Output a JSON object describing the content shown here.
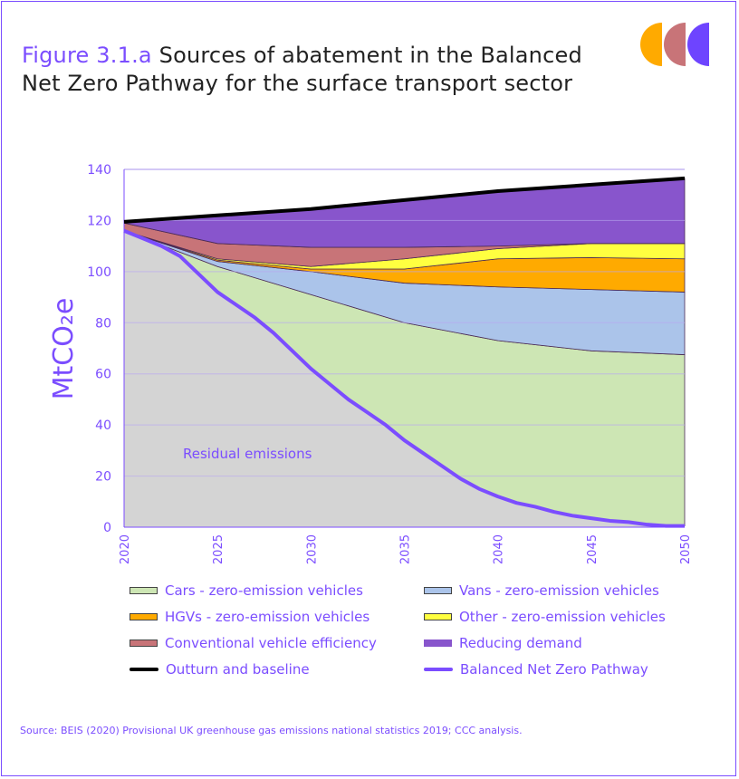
{
  "header": {
    "figure_label": "Figure 3.1.a",
    "title_line1": "Sources of abatement in the Balanced",
    "title_line2": "Net Zero Pathway for the surface transport sector"
  },
  "logo": {
    "colors": [
      "#ffaa00",
      "#c87478",
      "#6e44ff"
    ]
  },
  "source": "Source: BEIS (2020) Provisional UK greenhouse gas emissions national statistics 2019; CCC analysis.",
  "chart_data": {
    "type": "area",
    "title": "Sources of abatement in the Balanced Net Zero Pathway for the surface transport sector",
    "xlabel": "",
    "ylabel": "MtCO₂e",
    "ylim": [
      0,
      140
    ],
    "xlim": [
      2020,
      2050
    ],
    "yticks": [
      "0",
      "20",
      "40",
      "60",
      "80",
      "100",
      "120",
      "140"
    ],
    "xticks": [
      "2020",
      "2025",
      "2030",
      "2035",
      "2040",
      "2045",
      "2050"
    ],
    "grid": true,
    "annotation": "Residual emissions",
    "x": [
      2020,
      2025,
      2030,
      2035,
      2040,
      2045,
      2050
    ],
    "stacked_series": [
      {
        "name": "Cars - zero-emission vehicles",
        "color": "#cde6b4",
        "values": [
          0,
          10,
          29,
          46,
          61,
          65.5,
          67
        ]
      },
      {
        "name": "Vans - zero-emission vehicles",
        "color": "#abc4ea",
        "values": [
          0,
          2,
          9,
          15.5,
          21,
          24,
          24.5
        ]
      },
      {
        "name": "HGVs - zero-emission vehicles",
        "color": "#ffaa00",
        "values": [
          0,
          0.5,
          1,
          5.5,
          11,
          12.5,
          13
        ]
      },
      {
        "name": "Other - zero-emission vehicles",
        "color": "#ffff40",
        "values": [
          0,
          0.5,
          1,
          4,
          4,
          5.5,
          6
        ]
      },
      {
        "name": "Conventional vehicle efficiency",
        "color": "#c87478",
        "values": [
          3,
          6,
          7.5,
          4.5,
          1,
          0,
          0
        ]
      },
      {
        "name": "Reducing demand",
        "color": "#8855cc",
        "values": [
          0.5,
          11,
          15,
          18.5,
          21.5,
          23,
          25.5
        ]
      }
    ],
    "baseline": {
      "name": "Outturn and baseline",
      "color": "#000000",
      "values": [
        119.5,
        122,
        124.5,
        128,
        131.5,
        134,
        136.5
      ]
    },
    "pathway": {
      "name": "Balanced Net Zero Pathway",
      "color": "#7b4dff",
      "x": [
        2020,
        2021,
        2022,
        2023,
        2024,
        2025,
        2026,
        2027,
        2028,
        2029,
        2030,
        2031,
        2032,
        2033,
        2034,
        2035,
        2036,
        2037,
        2038,
        2039,
        2040,
        2041,
        2042,
        2043,
        2044,
        2045,
        2046,
        2047,
        2048,
        2049,
        2050
      ],
      "values": [
        116,
        113,
        110,
        106,
        99,
        92,
        87,
        82,
        76,
        69,
        62,
        56,
        50,
        45,
        40,
        34,
        29,
        24,
        19,
        15,
        12,
        9.5,
        8,
        6,
        4.5,
        3.5,
        2.5,
        2,
        1,
        0.5,
        0.5
      ]
    }
  },
  "legend": [
    {
      "label": "Cars - zero-emission vehicles",
      "type": "area",
      "color": "#cde6b4"
    },
    {
      "label": "Vans - zero-emission vehicles",
      "type": "area",
      "color": "#abc4ea"
    },
    {
      "label": "HGVs - zero-emission vehicles",
      "type": "area",
      "color": "#ffaa00"
    },
    {
      "label": "Other - zero-emission vehicles",
      "type": "area",
      "color": "#ffff40"
    },
    {
      "label": "Conventional vehicle efficiency",
      "type": "area",
      "color": "#c87478"
    },
    {
      "label": "Reducing demand",
      "type": "area",
      "color": "#8855cc"
    },
    {
      "label": "Outturn and baseline",
      "type": "line",
      "color": "#000000"
    },
    {
      "label": "Balanced Net Zero Pathway",
      "type": "line",
      "color": "#7b4dff"
    }
  ]
}
